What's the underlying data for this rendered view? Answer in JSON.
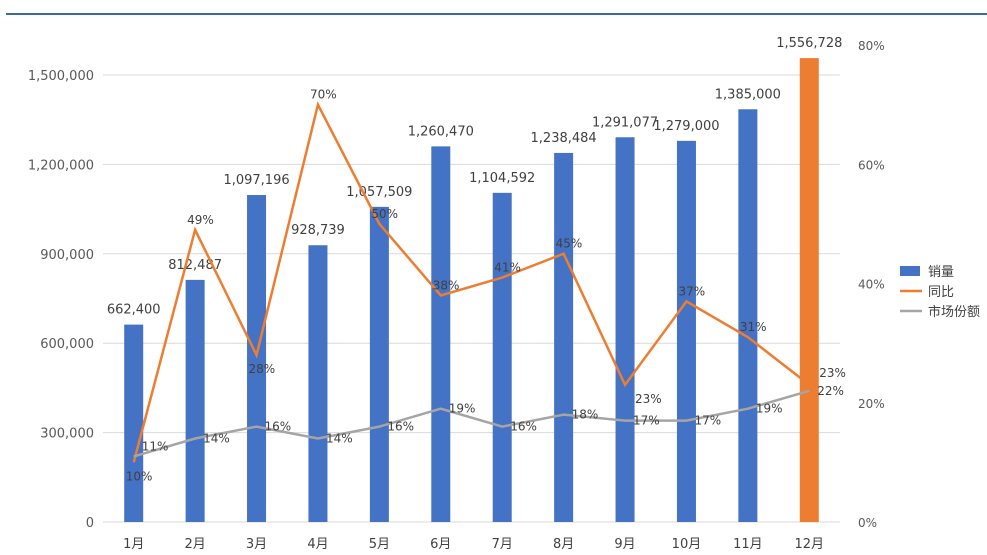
{
  "chart_data": {
    "type": "bar",
    "categories": [
      "1月",
      "2月",
      "3月",
      "4月",
      "5月",
      "6月",
      "7月",
      "8月",
      "9月",
      "10月",
      "11月",
      "12月"
    ],
    "series": [
      {
        "name": "销量",
        "type": "bar",
        "axis": "left",
        "values": [
          662400,
          812487,
          1097196,
          928739,
          1057509,
          1260470,
          1104592,
          1238484,
          1291077,
          1279000,
          1385000,
          1556728
        ],
        "labels": [
          "662,400",
          "812,487",
          "1,097,196",
          "928,739",
          "1,057,509",
          "1,260,470",
          "1,104,592",
          "1,238,484",
          "1,291,077",
          "1,279,000",
          "1,385,000",
          "1,556,728"
        ]
      },
      {
        "name": "同比",
        "type": "line",
        "axis": "right",
        "values": [
          10,
          49,
          28,
          70,
          50,
          38,
          41,
          45,
          23,
          37,
          31,
          23
        ]
      },
      {
        "name": "市场份额",
        "type": "line",
        "axis": "right",
        "values": [
          11,
          14,
          16,
          14,
          16,
          19,
          16,
          18,
          17,
          17,
          19,
          22
        ]
      }
    ],
    "highlight_bar_index": 11,
    "left_axis": {
      "ylim": [
        0,
        1500000
      ],
      "ticks": [
        "0",
        "300,000",
        "600,000",
        "900,000",
        "1,200,000",
        "1,500,000"
      ]
    },
    "right_axis": {
      "ylim": [
        0,
        80
      ],
      "ticks": [
        "0%",
        "20%",
        "40%",
        "60%",
        "80%"
      ]
    },
    "grid": true,
    "legend_placement": "right",
    "colors": {
      "bar": "#4472c4",
      "highlight": "#ed7d31",
      "yoy": "#ed7d31",
      "share": "#a5a5a5"
    }
  }
}
